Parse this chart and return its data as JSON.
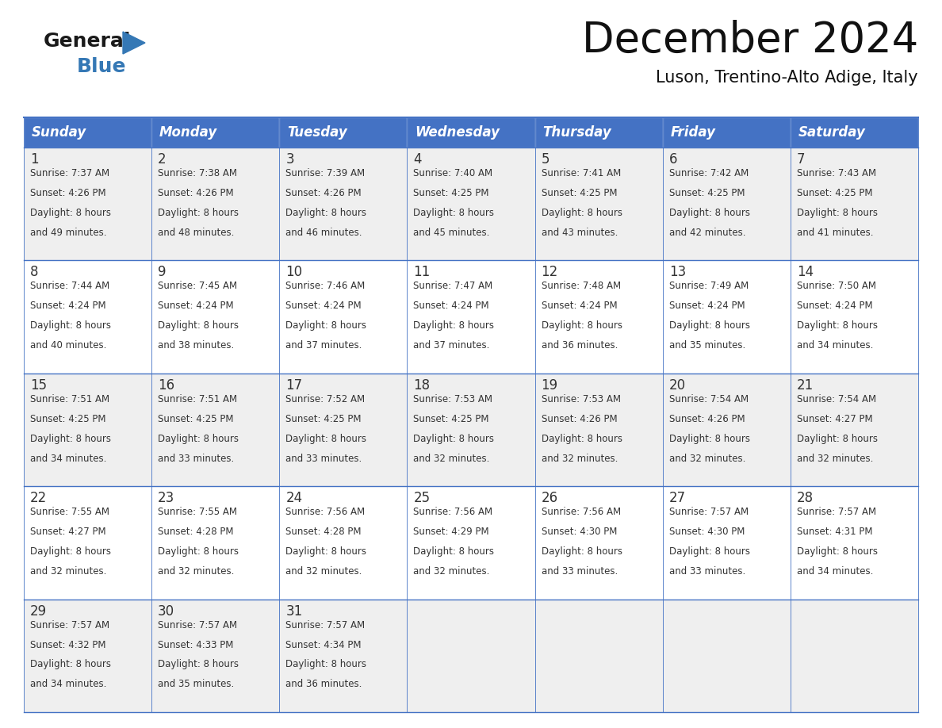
{
  "title": "December 2024",
  "subtitle": "Luson, Trentino-Alto Adige, Italy",
  "header_color": "#4472C4",
  "header_text_color": "#FFFFFF",
  "cell_bg_odd": "#EFEFEF",
  "cell_bg_even": "#FFFFFF",
  "border_color": "#4472C4",
  "text_color": "#333333",
  "day_names": [
    "Sunday",
    "Monday",
    "Tuesday",
    "Wednesday",
    "Thursday",
    "Friday",
    "Saturday"
  ],
  "days": [
    {
      "day": 1,
      "col": 0,
      "row": 0,
      "sunrise": "7:37 AM",
      "sunset": "4:26 PM",
      "daylight_h": "8 hours",
      "daylight_m": "49 minutes."
    },
    {
      "day": 2,
      "col": 1,
      "row": 0,
      "sunrise": "7:38 AM",
      "sunset": "4:26 PM",
      "daylight_h": "8 hours",
      "daylight_m": "48 minutes."
    },
    {
      "day": 3,
      "col": 2,
      "row": 0,
      "sunrise": "7:39 AM",
      "sunset": "4:26 PM",
      "daylight_h": "8 hours",
      "daylight_m": "46 minutes."
    },
    {
      "day": 4,
      "col": 3,
      "row": 0,
      "sunrise": "7:40 AM",
      "sunset": "4:25 PM",
      "daylight_h": "8 hours",
      "daylight_m": "45 minutes."
    },
    {
      "day": 5,
      "col": 4,
      "row": 0,
      "sunrise": "7:41 AM",
      "sunset": "4:25 PM",
      "daylight_h": "8 hours",
      "daylight_m": "43 minutes."
    },
    {
      "day": 6,
      "col": 5,
      "row": 0,
      "sunrise": "7:42 AM",
      "sunset": "4:25 PM",
      "daylight_h": "8 hours",
      "daylight_m": "42 minutes."
    },
    {
      "day": 7,
      "col": 6,
      "row": 0,
      "sunrise": "7:43 AM",
      "sunset": "4:25 PM",
      "daylight_h": "8 hours",
      "daylight_m": "41 minutes."
    },
    {
      "day": 8,
      "col": 0,
      "row": 1,
      "sunrise": "7:44 AM",
      "sunset": "4:24 PM",
      "daylight_h": "8 hours",
      "daylight_m": "40 minutes."
    },
    {
      "day": 9,
      "col": 1,
      "row": 1,
      "sunrise": "7:45 AM",
      "sunset": "4:24 PM",
      "daylight_h": "8 hours",
      "daylight_m": "38 minutes."
    },
    {
      "day": 10,
      "col": 2,
      "row": 1,
      "sunrise": "7:46 AM",
      "sunset": "4:24 PM",
      "daylight_h": "8 hours",
      "daylight_m": "37 minutes."
    },
    {
      "day": 11,
      "col": 3,
      "row": 1,
      "sunrise": "7:47 AM",
      "sunset": "4:24 PM",
      "daylight_h": "8 hours",
      "daylight_m": "37 minutes."
    },
    {
      "day": 12,
      "col": 4,
      "row": 1,
      "sunrise": "7:48 AM",
      "sunset": "4:24 PM",
      "daylight_h": "8 hours",
      "daylight_m": "36 minutes."
    },
    {
      "day": 13,
      "col": 5,
      "row": 1,
      "sunrise": "7:49 AM",
      "sunset": "4:24 PM",
      "daylight_h": "8 hours",
      "daylight_m": "35 minutes."
    },
    {
      "day": 14,
      "col": 6,
      "row": 1,
      "sunrise": "7:50 AM",
      "sunset": "4:24 PM",
      "daylight_h": "8 hours",
      "daylight_m": "34 minutes."
    },
    {
      "day": 15,
      "col": 0,
      "row": 2,
      "sunrise": "7:51 AM",
      "sunset": "4:25 PM",
      "daylight_h": "8 hours",
      "daylight_m": "34 minutes."
    },
    {
      "day": 16,
      "col": 1,
      "row": 2,
      "sunrise": "7:51 AM",
      "sunset": "4:25 PM",
      "daylight_h": "8 hours",
      "daylight_m": "33 minutes."
    },
    {
      "day": 17,
      "col": 2,
      "row": 2,
      "sunrise": "7:52 AM",
      "sunset": "4:25 PM",
      "daylight_h": "8 hours",
      "daylight_m": "33 minutes."
    },
    {
      "day": 18,
      "col": 3,
      "row": 2,
      "sunrise": "7:53 AM",
      "sunset": "4:25 PM",
      "daylight_h": "8 hours",
      "daylight_m": "32 minutes."
    },
    {
      "day": 19,
      "col": 4,
      "row": 2,
      "sunrise": "7:53 AM",
      "sunset": "4:26 PM",
      "daylight_h": "8 hours",
      "daylight_m": "32 minutes."
    },
    {
      "day": 20,
      "col": 5,
      "row": 2,
      "sunrise": "7:54 AM",
      "sunset": "4:26 PM",
      "daylight_h": "8 hours",
      "daylight_m": "32 minutes."
    },
    {
      "day": 21,
      "col": 6,
      "row": 2,
      "sunrise": "7:54 AM",
      "sunset": "4:27 PM",
      "daylight_h": "8 hours",
      "daylight_m": "32 minutes."
    },
    {
      "day": 22,
      "col": 0,
      "row": 3,
      "sunrise": "7:55 AM",
      "sunset": "4:27 PM",
      "daylight_h": "8 hours",
      "daylight_m": "32 minutes."
    },
    {
      "day": 23,
      "col": 1,
      "row": 3,
      "sunrise": "7:55 AM",
      "sunset": "4:28 PM",
      "daylight_h": "8 hours",
      "daylight_m": "32 minutes."
    },
    {
      "day": 24,
      "col": 2,
      "row": 3,
      "sunrise": "7:56 AM",
      "sunset": "4:28 PM",
      "daylight_h": "8 hours",
      "daylight_m": "32 minutes."
    },
    {
      "day": 25,
      "col": 3,
      "row": 3,
      "sunrise": "7:56 AM",
      "sunset": "4:29 PM",
      "daylight_h": "8 hours",
      "daylight_m": "32 minutes."
    },
    {
      "day": 26,
      "col": 4,
      "row": 3,
      "sunrise": "7:56 AM",
      "sunset": "4:30 PM",
      "daylight_h": "8 hours",
      "daylight_m": "33 minutes."
    },
    {
      "day": 27,
      "col": 5,
      "row": 3,
      "sunrise": "7:57 AM",
      "sunset": "4:30 PM",
      "daylight_h": "8 hours",
      "daylight_m": "33 minutes."
    },
    {
      "day": 28,
      "col": 6,
      "row": 3,
      "sunrise": "7:57 AM",
      "sunset": "4:31 PM",
      "daylight_h": "8 hours",
      "daylight_m": "34 minutes."
    },
    {
      "day": 29,
      "col": 0,
      "row": 4,
      "sunrise": "7:57 AM",
      "sunset": "4:32 PM",
      "daylight_h": "8 hours",
      "daylight_m": "34 minutes."
    },
    {
      "day": 30,
      "col": 1,
      "row": 4,
      "sunrise": "7:57 AM",
      "sunset": "4:33 PM",
      "daylight_h": "8 hours",
      "daylight_m": "35 minutes."
    },
    {
      "day": 31,
      "col": 2,
      "row": 4,
      "sunrise": "7:57 AM",
      "sunset": "4:34 PM",
      "daylight_h": "8 hours",
      "daylight_m": "36 minutes."
    }
  ],
  "logo_general_color": "#1a1a1a",
  "logo_blue_color": "#3578b5",
  "title_fontsize": 38,
  "subtitle_fontsize": 15,
  "header_fontsize": 12,
  "day_num_fontsize": 12,
  "cell_text_fontsize": 8.5
}
